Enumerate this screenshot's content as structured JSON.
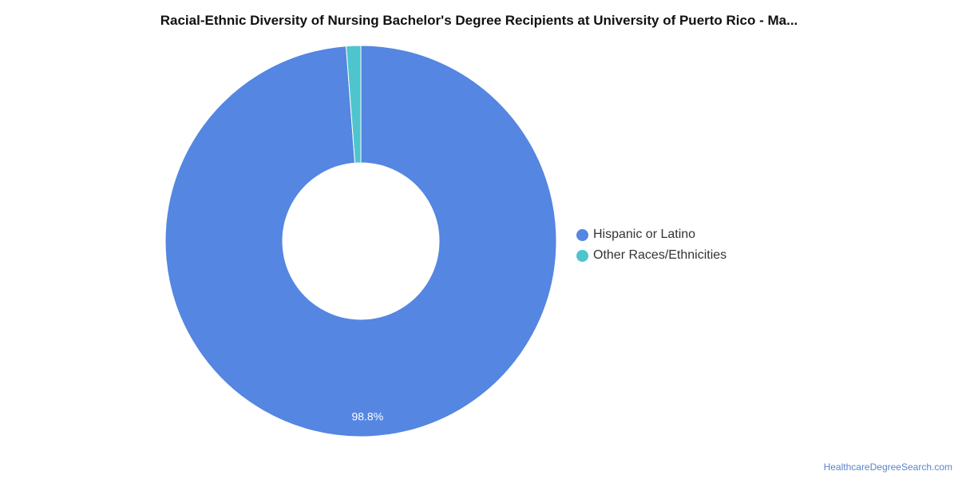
{
  "chart_data": {
    "type": "pie",
    "title": "Racial-Ethnic Diversity of Nursing Bachelor's Degree Recipients at University of Puerto Rico - Ma...",
    "slices": [
      {
        "label": "Hispanic or Latino",
        "value": 98.8,
        "color": "#5486e2",
        "data_label": "98.8%"
      },
      {
        "label": "Other Races/Ethnicities",
        "value": 1.2,
        "color": "#4ec5cc",
        "data_label": ""
      }
    ],
    "legend_position": "right"
  },
  "source": {
    "text": "HealthcareDegreeSearch.com"
  }
}
